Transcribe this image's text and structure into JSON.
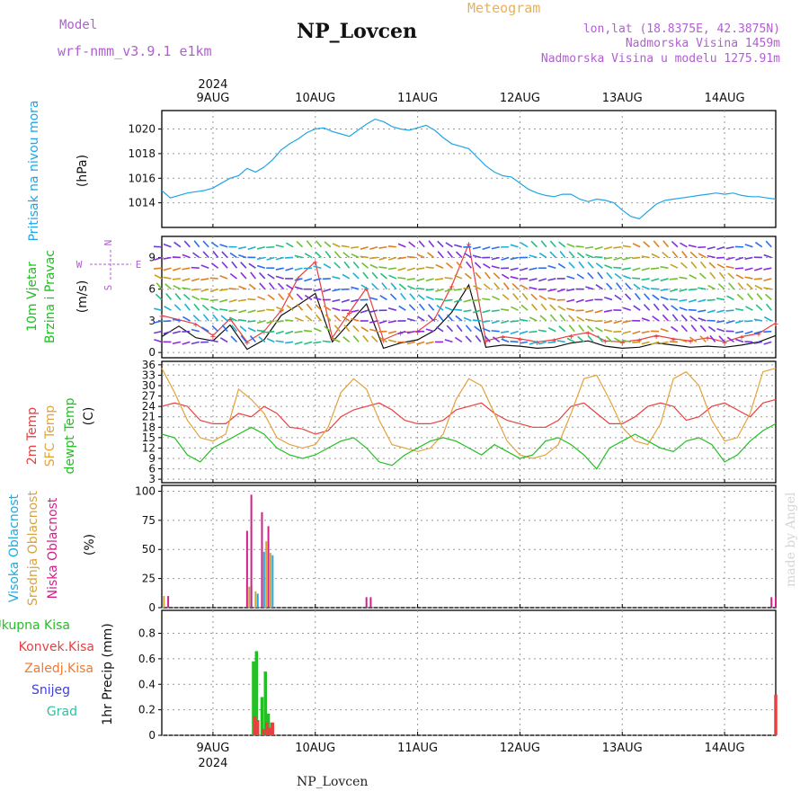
{
  "header": {
    "model_label": "Model",
    "model_value": "wrf-nmm_v3.9.1 e1km",
    "title": "NP_Lovcen",
    "meteogram_label": "Meteogram",
    "lonlat": "lon,lat (18.8375E, 42.3875N)",
    "altitude": "Nadmorska Visina 1459m",
    "altitude_model": "Nadmorska Visina u modelu 1275.91m"
  },
  "footer_name": "NP_Lovcen",
  "watermark": "made by Angel",
  "colors": {
    "pressure": "#1ea5e6",
    "temp_2m": "#e8403f",
    "temp_sfc": "#e3a23c",
    "dewpoint": "#20c020",
    "cloud_high": "#22aadd",
    "cloud_mid": "#d6a340",
    "cloud_low": "#d0208a",
    "precip_total": "#22c022",
    "precip_conv": "#e84040",
    "precip_freezing": "#f07a30",
    "precip_snow": "#4040d8",
    "precip_hail": "#30c0a0"
  },
  "chart_data": [
    {
      "type": "line",
      "panel": "pressure",
      "ylabel_lines": [
        "Pritisak na nivou mora",
        "(hPa)"
      ],
      "yticks": [
        1014,
        1016,
        1018,
        1020
      ],
      "ylim": [
        1012,
        1021.5
      ],
      "x_unit": "hours since 2024-08-08 12:00 UTC",
      "x_range": [
        0,
        144
      ],
      "x_tick_labels": [
        "9AUG",
        "10AUG",
        "11AUG",
        "12AUG",
        "13AUG",
        "14AUG"
      ],
      "x_year_label": "2024",
      "series": [
        {
          "x": [
            0,
            2,
            4,
            6,
            8,
            10,
            12,
            14,
            16,
            18,
            20,
            22,
            24,
            26,
            28,
            30,
            32,
            34,
            36,
            38,
            40,
            42,
            44,
            46,
            48,
            50,
            52,
            54,
            56,
            58,
            60,
            62,
            64,
            66,
            68,
            70,
            72,
            74,
            76,
            78,
            80,
            82,
            84,
            86,
            88,
            90,
            92,
            94,
            96,
            98,
            100,
            102,
            104,
            106,
            108,
            110,
            112,
            114,
            116,
            118,
            120,
            122,
            124,
            126,
            128,
            130,
            132,
            134,
            136,
            138,
            140,
            142,
            144
          ],
          "values": [
            1015.0,
            1014.4,
            1014.6,
            1014.8,
            1014.9,
            1015.0,
            1015.2,
            1015.6,
            1016.0,
            1016.2,
            1016.8,
            1016.5,
            1016.9,
            1017.5,
            1018.3,
            1018.8,
            1019.2,
            1019.7,
            1020.0,
            1020.1,
            1019.8,
            1019.6,
            1019.4,
            1019.9,
            1020.4,
            1020.8,
            1020.6,
            1020.2,
            1020.0,
            1019.9,
            1020.1,
            1020.3,
            1019.9,
            1019.3,
            1018.8,
            1018.6,
            1018.4,
            1017.7,
            1017.0,
            1016.5,
            1016.2,
            1016.1,
            1015.6,
            1015.1,
            1014.8,
            1014.6,
            1014.5,
            1014.7,
            1014.7,
            1014.3,
            1014.1,
            1014.3,
            1014.2,
            1014.0,
            1013.4,
            1012.9,
            1012.7,
            1013.3,
            1013.9,
            1014.2,
            1014.3,
            1014.4,
            1014.5,
            1014.6,
            1014.7,
            1014.8,
            1014.7,
            1014.8,
            1014.6,
            1014.5,
            1014.5,
            1014.4,
            1014.3
          ]
        }
      ]
    },
    {
      "type": "line",
      "panel": "wind",
      "ylabel_lines": [
        "10m Vjetar",
        "Brzina i Pravac",
        "(m/s)"
      ],
      "compass": {
        "north": "N",
        "south": "S",
        "west": "W",
        "east": "E"
      },
      "yticks": [
        0,
        3,
        6,
        9
      ],
      "ylim": [
        -0.5,
        11
      ],
      "x_unit": "hours since 2024-08-08 12:00 UTC",
      "x_range": [
        0,
        144
      ],
      "series": [
        {
          "name": "speed",
          "x": [
            0,
            4,
            8,
            12,
            16,
            20,
            24,
            28,
            32,
            36,
            40,
            44,
            48,
            52,
            56,
            60,
            64,
            68,
            72,
            76,
            80,
            84,
            88,
            92,
            96,
            100,
            104,
            108,
            112,
            116,
            120,
            124,
            128,
            132,
            136,
            140,
            144
          ],
          "values": [
            1.5,
            2.5,
            1.4,
            1.1,
            2.6,
            0.3,
            1.2,
            3.5,
            4.5,
            5.6,
            1.0,
            2.8,
            4.6,
            0.4,
            0.9,
            1.2,
            2.1,
            3.8,
            6.4,
            0.5,
            0.7,
            0.6,
            0.4,
            0.5,
            0.9,
            1.1,
            0.6,
            0.4,
            0.5,
            0.9,
            0.7,
            0.5,
            0.6,
            0.5,
            0.7,
            1.0,
            1.6
          ]
        },
        {
          "name": "gust",
          "x": [
            0,
            4,
            8,
            12,
            16,
            20,
            24,
            28,
            32,
            36,
            40,
            44,
            48,
            52,
            56,
            60,
            64,
            68,
            72,
            76,
            80,
            84,
            88,
            92,
            96,
            100,
            104,
            108,
            112,
            116,
            120,
            124,
            128,
            132,
            136,
            140,
            144
          ],
          "values": [
            3.5,
            3.1,
            2.7,
            1.6,
            3.2,
            1.0,
            2.0,
            4.0,
            7.1,
            8.6,
            1.4,
            3.8,
            6.1,
            1.2,
            1.9,
            2.0,
            3.2,
            6.3,
            10.3,
            1.1,
            1.5,
            1.3,
            1.0,
            1.2,
            1.6,
            1.9,
            1.1,
            1.0,
            1.2,
            1.6,
            1.3,
            1.1,
            1.4,
            1.0,
            1.5,
            1.8,
            2.8
          ]
        }
      ],
      "arrow_rows": [
        1,
        2,
        3,
        4,
        5,
        6,
        7,
        8,
        9,
        10
      ]
    },
    {
      "type": "line",
      "panel": "temperature",
      "ylabel_lines": [
        "2m Temp",
        "SFC Temp",
        "dewpt Temp",
        "(C)"
      ],
      "yticks": [
        3,
        6,
        9,
        12,
        15,
        18,
        21,
        24,
        27,
        30,
        33,
        36
      ],
      "ylim": [
        2,
        37
      ],
      "x_unit": "hours since 2024-08-08 12:00 UTC",
      "x_range": [
        0,
        144
      ],
      "series": [
        {
          "name": "2m Temp",
          "x": [
            0,
            3,
            6,
            9,
            12,
            15,
            18,
            21,
            24,
            27,
            30,
            33,
            36,
            39,
            42,
            45,
            48,
            51,
            54,
            57,
            60,
            63,
            66,
            69,
            72,
            75,
            78,
            81,
            84,
            87,
            90,
            93,
            96,
            99,
            102,
            105,
            108,
            111,
            114,
            117,
            120,
            123,
            126,
            129,
            132,
            135,
            138,
            141,
            144
          ],
          "values": [
            24,
            25,
            24,
            20,
            19,
            19,
            22,
            21,
            24,
            22,
            18,
            17.5,
            16,
            17,
            21,
            23,
            24,
            25,
            23,
            20,
            19,
            19,
            20,
            23,
            24,
            25,
            22,
            20,
            19,
            18,
            18,
            20,
            24,
            25,
            22,
            19,
            19,
            21,
            24,
            25,
            24,
            20,
            21,
            24,
            25,
            23,
            21,
            25,
            26
          ]
        },
        {
          "name": "SFC Temp",
          "x": [
            0,
            3,
            6,
            9,
            12,
            15,
            18,
            21,
            24,
            27,
            30,
            33,
            36,
            39,
            42,
            45,
            48,
            51,
            54,
            57,
            60,
            63,
            66,
            69,
            72,
            75,
            78,
            81,
            84,
            87,
            90,
            93,
            96,
            99,
            102,
            105,
            108,
            111,
            114,
            117,
            120,
            123,
            126,
            129,
            132,
            135,
            138,
            141,
            144
          ],
          "values": [
            35,
            28,
            20,
            15,
            14,
            16,
            29,
            26,
            22,
            15,
            13,
            12,
            13,
            18,
            28,
            32,
            29,
            20,
            13,
            12,
            11,
            12,
            16,
            26,
            32,
            30,
            22,
            14,
            10,
            9,
            10,
            13,
            22,
            32,
            33,
            26,
            18,
            14,
            13,
            19,
            32,
            34,
            30,
            20,
            14,
            15,
            22,
            34,
            35
          ]
        },
        {
          "name": "dewpt Temp",
          "x": [
            0,
            3,
            6,
            9,
            12,
            15,
            18,
            21,
            24,
            27,
            30,
            33,
            36,
            39,
            42,
            45,
            48,
            51,
            54,
            57,
            60,
            63,
            66,
            69,
            72,
            75,
            78,
            81,
            84,
            87,
            90,
            93,
            96,
            99,
            102,
            105,
            108,
            111,
            114,
            117,
            120,
            123,
            126,
            129,
            132,
            135,
            138,
            141,
            144
          ],
          "values": [
            16,
            15,
            10,
            8,
            12,
            14,
            16,
            18,
            16,
            12,
            10,
            9,
            10,
            12,
            14,
            15,
            12,
            8,
            7,
            10,
            12,
            14,
            15,
            14,
            12,
            10,
            13,
            11,
            9,
            10,
            14,
            15,
            13,
            10,
            6,
            12,
            14,
            16,
            14,
            12,
            11,
            14,
            15,
            13,
            8,
            10,
            14,
            17,
            19
          ]
        }
      ]
    },
    {
      "type": "bar",
      "panel": "clouds",
      "ylabel_lines": [
        "Visoka Oblacnost",
        "Srednja Oblacnost",
        "Niska Oblacnost",
        "(%)"
      ],
      "yticks": [
        0,
        25,
        50,
        75,
        100
      ],
      "ylim": [
        0,
        105
      ],
      "x_unit": "hours since 2024-08-08 12:00 UTC",
      "x_range": [
        0,
        144
      ],
      "series": [
        {
          "name": "Visoka Oblacnost",
          "x": [
            21,
            22.5,
            24,
            26
          ],
          "values": [
            18,
            12,
            48,
            45
          ]
        },
        {
          "name": "Srednja Oblacnost",
          "x": [
            0.5,
            20.5,
            22,
            24.5,
            25.5
          ],
          "values": [
            10,
            18,
            14,
            57,
            47
          ]
        },
        {
          "name": "Niska Oblacnost",
          "x": [
            1.5,
            20,
            21,
            23.5,
            25,
            48,
            49,
            143,
            144
          ],
          "values": [
            10,
            66,
            97,
            82,
            70,
            9,
            9,
            9,
            9
          ]
        }
      ]
    },
    {
      "type": "bar",
      "panel": "precipitation",
      "ylabel_lines": [
        "1hr Precip (mm)"
      ],
      "legend": [
        "Ukupna Kisa",
        "Konvek.Kisa",
        "Zaledj.Kisa",
        "Snijeg",
        "Grad"
      ],
      "yticks": [
        0,
        0.2,
        0.4,
        0.6,
        0.8
      ],
      "ylim": [
        0,
        0.98
      ],
      "x_unit": "hours since 2024-08-08 12:00 UTC",
      "x_range": [
        0,
        144
      ],
      "series": [
        {
          "name": "Ukupna Kisa",
          "x": [
            21.5,
            22.2,
            23.5,
            24.3,
            25,
            25.8
          ],
          "values": [
            0.58,
            0.66,
            0.3,
            0.5,
            0.17,
            0.1
          ]
        },
        {
          "name": "Konvek.Kisa",
          "x": [
            21.8,
            22.5,
            23.8,
            24.6,
            25.3,
            26,
            144
          ],
          "values": [
            0.15,
            0.12,
            0.05,
            0.1,
            0.06,
            0.1,
            0.32
          ]
        }
      ]
    }
  ]
}
